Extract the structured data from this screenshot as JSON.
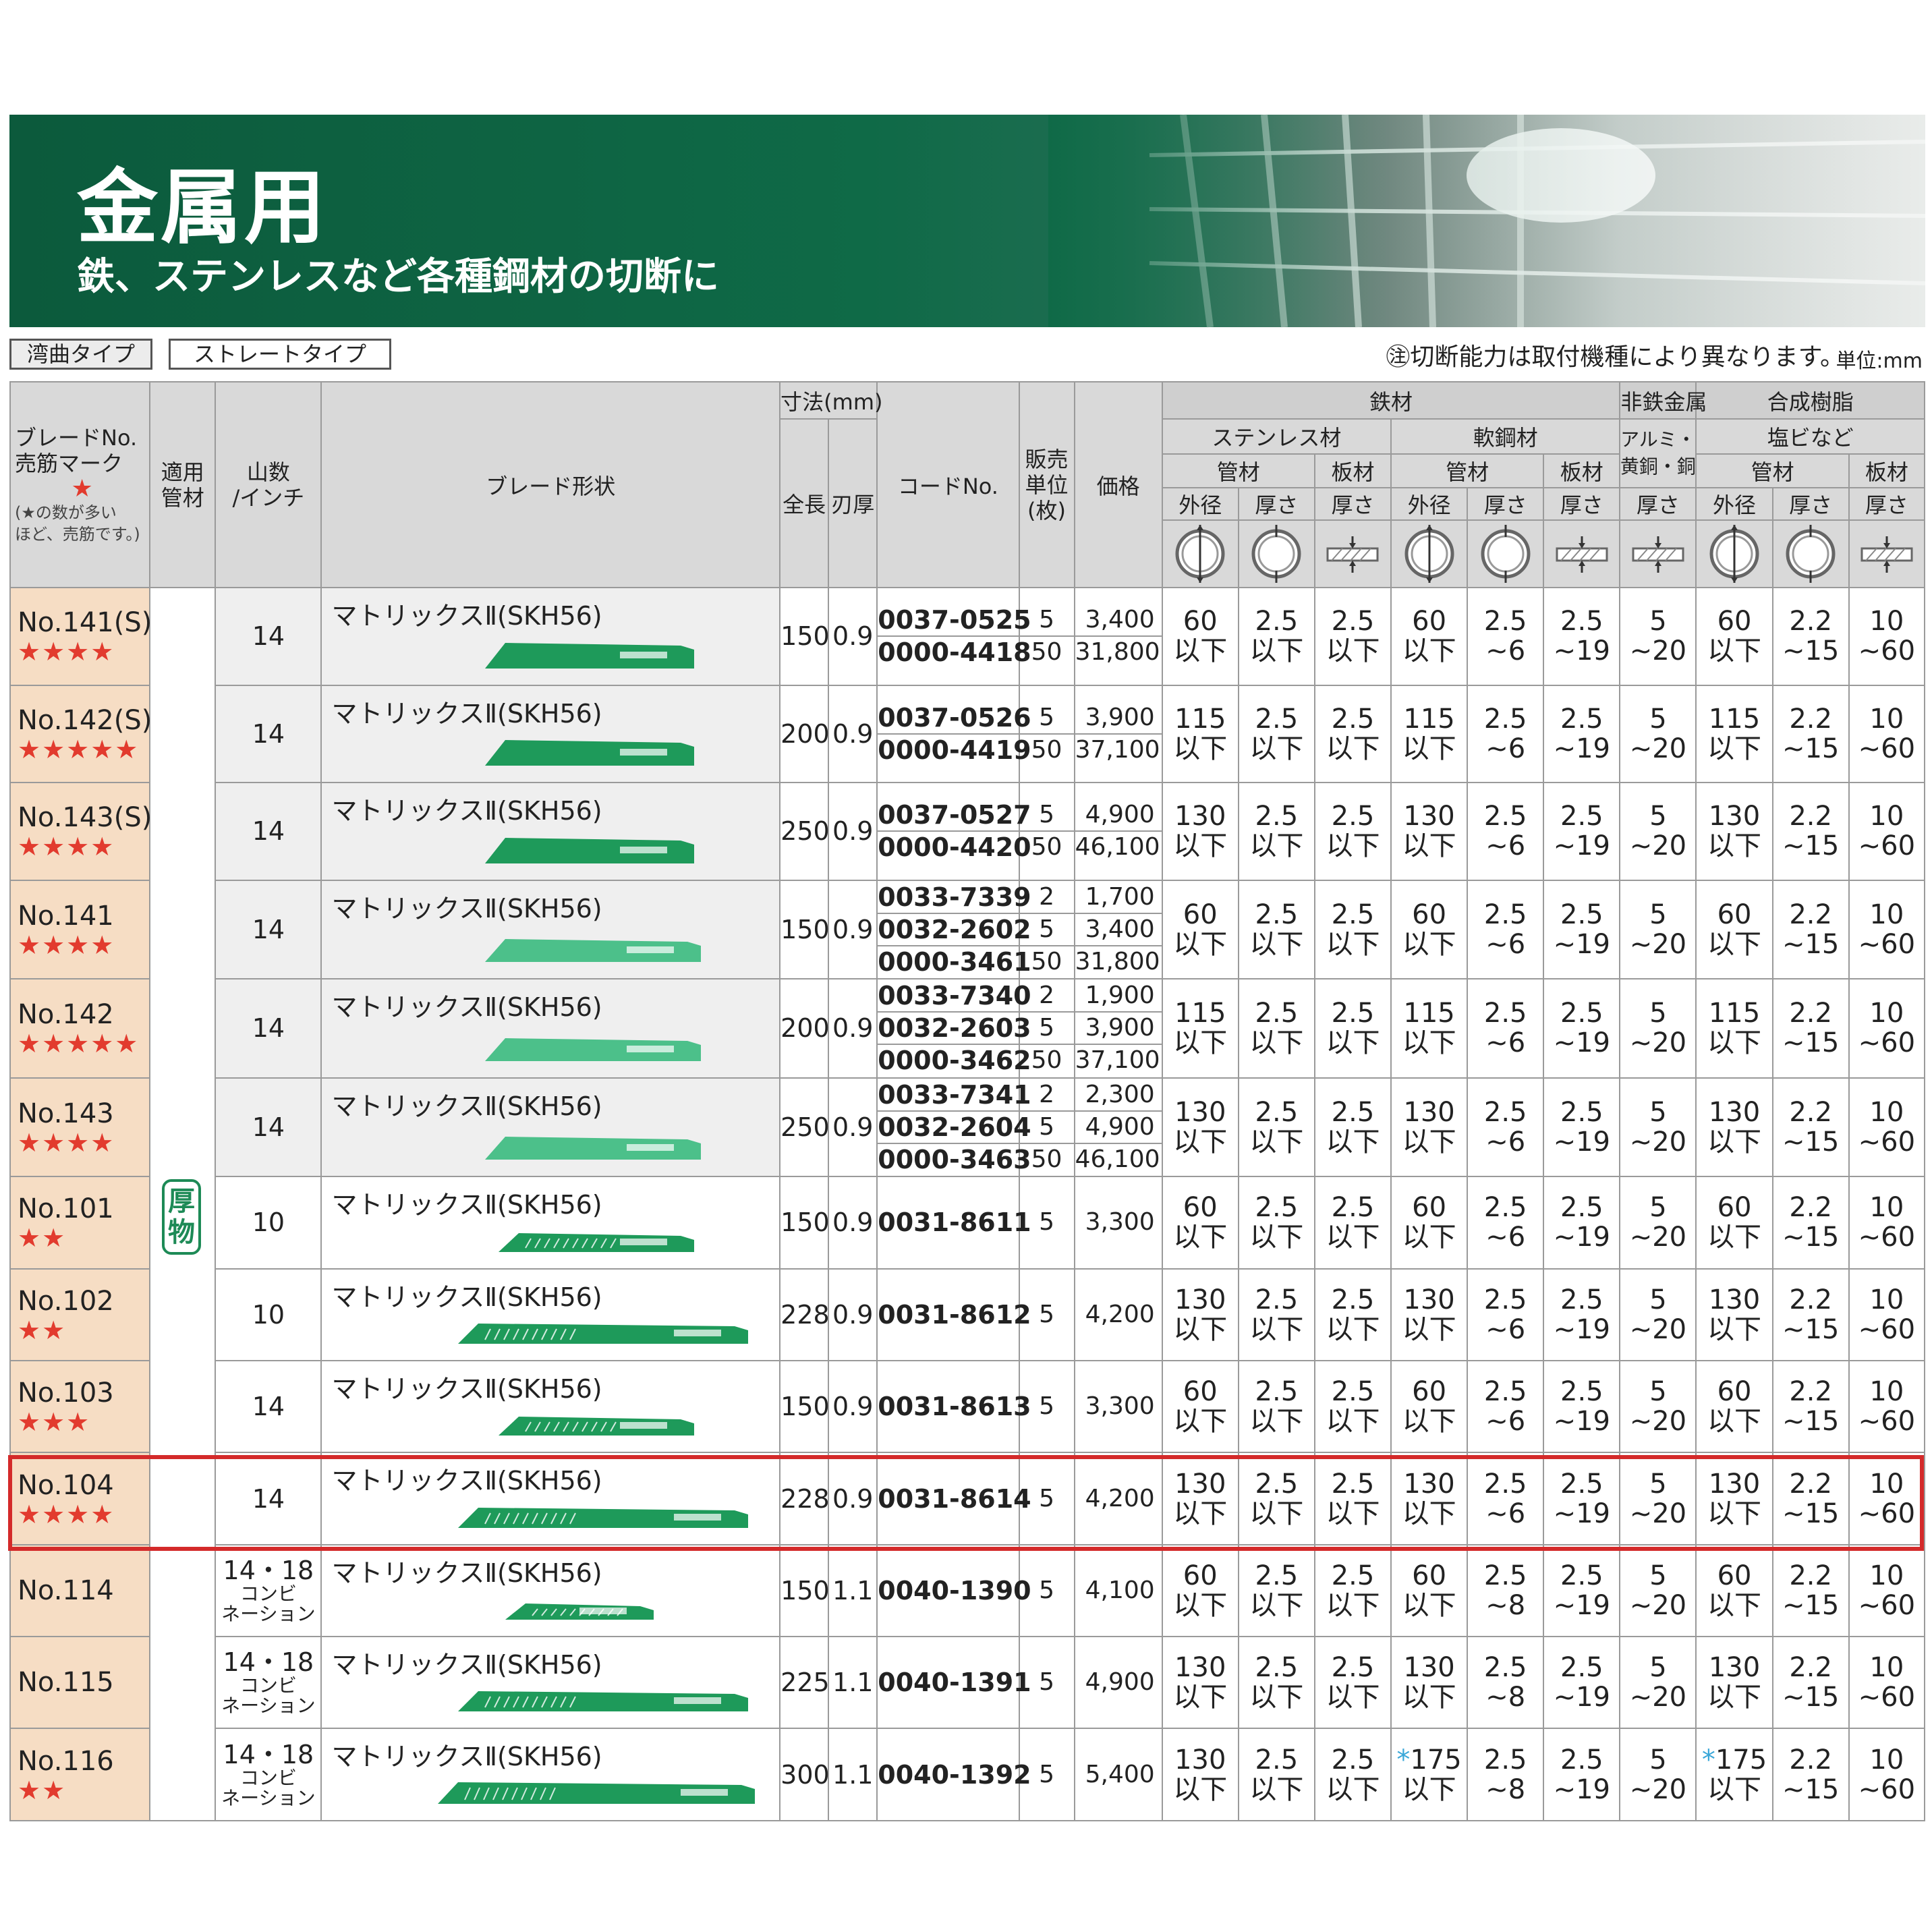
{
  "banner": {
    "title": "金属用",
    "subtitle": "鉄、ステンレスなど各種鋼材の切断に"
  },
  "tabs": {
    "curved": "湾曲タイプ",
    "straight": "ストレートタイプ"
  },
  "note": "㊟切断能力は取付機種により異なります。",
  "unit": "単位:mm",
  "header": {
    "blade_no": "ブレードNo.",
    "popular_mark": "売筋マーク",
    "star": "★",
    "popular_note_1": "(★の数が多い",
    "popular_note_2": "ほど、売筋です。)",
    "material_1": "適用",
    "material_2": "管材",
    "teeth_1": "山数",
    "teeth_2": "/インチ",
    "shape": "ブレード形状",
    "dimension": "寸法(mm)",
    "length": "全長",
    "thickness": "刃厚",
    "code": "コードNo.",
    "unit_1": "販売",
    "unit_2": "単位",
    "unit_3": "(枚)",
    "price": "価格",
    "iron": "鉄材",
    "nonferrous": "非鉄金属",
    "resin": "合成樹脂",
    "stainless": "ステンレス材",
    "mild_steel": "軟鋼材",
    "alu_1": "アルミ・",
    "alu_2": "黄銅・銅",
    "pvc": "塩ビなど",
    "pipe": "管材",
    "plate": "板材",
    "od": "外径",
    "thick": "厚さ"
  },
  "thick_badge": [
    "厚",
    "物"
  ],
  "rows": [
    {
      "no": "No.141(S)",
      "stars": "★★★★",
      "teeth": "14",
      "shape": "マトリックスⅡ(SKH56)",
      "blade": "wide",
      "length": "150",
      "thick": "0.9",
      "codes": [
        "0037-0525",
        "0000-4418"
      ],
      "units": [
        "5",
        "50"
      ],
      "prices": [
        "3,400",
        "31,800"
      ],
      "cap": [
        [
          "60",
          "以下"
        ],
        [
          "2.5",
          "以下"
        ],
        [
          "2.5",
          "以下"
        ],
        [
          "60",
          "以下"
        ],
        [
          "2.5",
          "~6"
        ],
        [
          "2.5",
          "~19"
        ],
        [
          "5",
          "~20"
        ],
        [
          "60",
          "以下"
        ],
        [
          "2.2",
          "~15"
        ],
        [
          "10",
          "~60"
        ]
      ]
    },
    {
      "no": "No.142(S)",
      "stars": "★★★★★",
      "teeth": "14",
      "shape": "マトリックスⅡ(SKH56)",
      "blade": "wide",
      "length": "200",
      "thick": "0.9",
      "codes": [
        "0037-0526",
        "0000-4419"
      ],
      "units": [
        "5",
        "50"
      ],
      "prices": [
        "3,900",
        "37,100"
      ],
      "cap": [
        [
          "115",
          "以下"
        ],
        [
          "2.5",
          "以下"
        ],
        [
          "2.5",
          "以下"
        ],
        [
          "115",
          "以下"
        ],
        [
          "2.5",
          "~6"
        ],
        [
          "2.5",
          "~19"
        ],
        [
          "5",
          "~20"
        ],
        [
          "115",
          "以下"
        ],
        [
          "2.2",
          "~15"
        ],
        [
          "10",
          "~60"
        ]
      ]
    },
    {
      "no": "No.143(S)",
      "stars": "★★★★",
      "teeth": "14",
      "shape": "マトリックスⅡ(SKH56)",
      "blade": "wide",
      "length": "250",
      "thick": "0.9",
      "codes": [
        "0037-0527",
        "0000-4420"
      ],
      "units": [
        "5",
        "50"
      ],
      "prices": [
        "4,900",
        "46,100"
      ],
      "cap": [
        [
          "130",
          "以下"
        ],
        [
          "2.5",
          "以下"
        ],
        [
          "2.5",
          "以下"
        ],
        [
          "130",
          "以下"
        ],
        [
          "2.5",
          "~6"
        ],
        [
          "2.5",
          "~19"
        ],
        [
          "5",
          "~20"
        ],
        [
          "130",
          "以下"
        ],
        [
          "2.2",
          "~15"
        ],
        [
          "10",
          "~60"
        ]
      ]
    },
    {
      "no": "No.141",
      "stars": "★★★★",
      "teeth": "14",
      "shape": "マトリックスⅡ(SKH56)",
      "blade": "light",
      "length": "150",
      "thick": "0.9",
      "codes": [
        "0033-7339",
        "0032-2602",
        "0000-3461"
      ],
      "units": [
        "2",
        "5",
        "50"
      ],
      "prices": [
        "1,700",
        "3,400",
        "31,800"
      ],
      "cap": [
        [
          "60",
          "以下"
        ],
        [
          "2.5",
          "以下"
        ],
        [
          "2.5",
          "以下"
        ],
        [
          "60",
          "以下"
        ],
        [
          "2.5",
          "~6"
        ],
        [
          "2.5",
          "~19"
        ],
        [
          "5",
          "~20"
        ],
        [
          "60",
          "以下"
        ],
        [
          "2.2",
          "~15"
        ],
        [
          "10",
          "~60"
        ]
      ]
    },
    {
      "no": "No.142",
      "stars": "★★★★★",
      "teeth": "14",
      "shape": "マトリックスⅡ(SKH56)",
      "blade": "light",
      "length": "200",
      "thick": "0.9",
      "codes": [
        "0033-7340",
        "0032-2603",
        "0000-3462"
      ],
      "units": [
        "2",
        "5",
        "50"
      ],
      "prices": [
        "1,900",
        "3,900",
        "37,100"
      ],
      "cap": [
        [
          "115",
          "以下"
        ],
        [
          "2.5",
          "以下"
        ],
        [
          "2.5",
          "以下"
        ],
        [
          "115",
          "以下"
        ],
        [
          "2.5",
          "~6"
        ],
        [
          "2.5",
          "~19"
        ],
        [
          "5",
          "~20"
        ],
        [
          "115",
          "以下"
        ],
        [
          "2.2",
          "~15"
        ],
        [
          "10",
          "~60"
        ]
      ]
    },
    {
      "no": "No.143",
      "stars": "★★★★",
      "teeth": "14",
      "shape": "マトリックスⅡ(SKH56)",
      "blade": "light",
      "length": "250",
      "thick": "0.9",
      "codes": [
        "0033-7341",
        "0032-2604",
        "0000-3463"
      ],
      "units": [
        "2",
        "5",
        "50"
      ],
      "prices": [
        "2,300",
        "4,900",
        "46,100"
      ],
      "cap": [
        [
          "130",
          "以下"
        ],
        [
          "2.5",
          "以下"
        ],
        [
          "2.5",
          "以下"
        ],
        [
          "130",
          "以下"
        ],
        [
          "2.5",
          "~6"
        ],
        [
          "2.5",
          "~19"
        ],
        [
          "5",
          "~20"
        ],
        [
          "130",
          "以下"
        ],
        [
          "2.2",
          "~15"
        ],
        [
          "10",
          "~60"
        ]
      ]
    },
    {
      "no": "No.101",
      "stars": "★★",
      "teeth": "10",
      "shape": "マトリックスⅡ(SKH56)",
      "blade": "narrow",
      "length": "150",
      "thick": "0.9",
      "codes": [
        "0031-8611"
      ],
      "units": [
        "5"
      ],
      "prices": [
        "3,300"
      ],
      "cap": [
        [
          "60",
          "以下"
        ],
        [
          "2.5",
          "以下"
        ],
        [
          "2.5",
          "以下"
        ],
        [
          "60",
          "以下"
        ],
        [
          "2.5",
          "~6"
        ],
        [
          "2.5",
          "~19"
        ],
        [
          "5",
          "~20"
        ],
        [
          "60",
          "以下"
        ],
        [
          "2.2",
          "~15"
        ],
        [
          "10",
          "~60"
        ]
      ]
    },
    {
      "no": "No.102",
      "stars": "★★",
      "teeth": "10",
      "shape": "マトリックスⅡ(SKH56)",
      "blade": "narrow-long",
      "length": "228",
      "thick": "0.9",
      "codes": [
        "0031-8612"
      ],
      "units": [
        "5"
      ],
      "prices": [
        "4,200"
      ],
      "cap": [
        [
          "130",
          "以下"
        ],
        [
          "2.5",
          "以下"
        ],
        [
          "2.5",
          "以下"
        ],
        [
          "130",
          "以下"
        ],
        [
          "2.5",
          "~6"
        ],
        [
          "2.5",
          "~19"
        ],
        [
          "5",
          "~20"
        ],
        [
          "130",
          "以下"
        ],
        [
          "2.2",
          "~15"
        ],
        [
          "10",
          "~60"
        ]
      ]
    },
    {
      "no": "No.103",
      "stars": "★★★",
      "teeth": "14",
      "shape": "マトリックスⅡ(SKH56)",
      "blade": "narrow",
      "length": "150",
      "thick": "0.9",
      "codes": [
        "0031-8613"
      ],
      "units": [
        "5"
      ],
      "prices": [
        "3,300"
      ],
      "cap": [
        [
          "60",
          "以下"
        ],
        [
          "2.5",
          "以下"
        ],
        [
          "2.5",
          "以下"
        ],
        [
          "60",
          "以下"
        ],
        [
          "2.5",
          "~6"
        ],
        [
          "2.5",
          "~19"
        ],
        [
          "5",
          "~20"
        ],
        [
          "60",
          "以下"
        ],
        [
          "2.2",
          "~15"
        ],
        [
          "10",
          "~60"
        ]
      ]
    },
    {
      "no": "No.104",
      "stars": "★★★★",
      "teeth": "14",
      "shape": "マトリックスⅡ(SKH56)",
      "blade": "narrow-long",
      "length": "228",
      "thick": "0.9",
      "codes": [
        "0031-8614"
      ],
      "units": [
        "5"
      ],
      "prices": [
        "4,200"
      ],
      "cap": [
        [
          "130",
          "以下"
        ],
        [
          "2.5",
          "以下"
        ],
        [
          "2.5",
          "以下"
        ],
        [
          "130",
          "以下"
        ],
        [
          "2.5",
          "~6"
        ],
        [
          "2.5",
          "~19"
        ],
        [
          "5",
          "~20"
        ],
        [
          "130",
          "以下"
        ],
        [
          "2.2",
          "~15"
        ],
        [
          "10",
          "~60"
        ]
      ]
    },
    {
      "no": "No.114",
      "stars": "",
      "teeth": "14・18",
      "teeth_sub_1": "コンビ",
      "teeth_sub_2": "ネーション",
      "shape": "マトリックスⅡ(SKH56)",
      "blade": "short",
      "length": "150",
      "thick": "1.1",
      "codes": [
        "0040-1390"
      ],
      "units": [
        "5"
      ],
      "prices": [
        "4,100"
      ],
      "cap": [
        [
          "60",
          "以下"
        ],
        [
          "2.5",
          "以下"
        ],
        [
          "2.5",
          "以下"
        ],
        [
          "60",
          "以下"
        ],
        [
          "2.5",
          "~8"
        ],
        [
          "2.5",
          "~19"
        ],
        [
          "5",
          "~20"
        ],
        [
          "60",
          "以下"
        ],
        [
          "2.2",
          "~15"
        ],
        [
          "10",
          "~60"
        ]
      ]
    },
    {
      "no": "No.115",
      "stars": "",
      "teeth": "14・18",
      "teeth_sub_1": "コンビ",
      "teeth_sub_2": "ネーション",
      "shape": "マトリックスⅡ(SKH56)",
      "blade": "narrow-long",
      "length": "225",
      "thick": "1.1",
      "codes": [
        "0040-1391"
      ],
      "units": [
        "5"
      ],
      "prices": [
        "4,900"
      ],
      "cap": [
        [
          "130",
          "以下"
        ],
        [
          "2.5",
          "以下"
        ],
        [
          "2.5",
          "以下"
        ],
        [
          "130",
          "以下"
        ],
        [
          "2.5",
          "~8"
        ],
        [
          "2.5",
          "~19"
        ],
        [
          "5",
          "~20"
        ],
        [
          "130",
          "以下"
        ],
        [
          "2.2",
          "~15"
        ],
        [
          "10",
          "~60"
        ]
      ]
    },
    {
      "no": "No.116",
      "stars": "★★",
      "teeth": "14・18",
      "teeth_sub_1": "コンビ",
      "teeth_sub_2": "ネーション",
      "shape": "マトリックスⅡ(SKH56)",
      "blade": "long",
      "length": "300",
      "thick": "1.1",
      "codes": [
        "0040-1392"
      ],
      "units": [
        "5"
      ],
      "prices": [
        "5,400"
      ],
      "cap": [
        [
          "130",
          "以下"
        ],
        [
          "2.5",
          "以下"
        ],
        [
          "2.5",
          "以下"
        ],
        [
          "*175",
          "以下"
        ],
        [
          "2.5",
          "~8"
        ],
        [
          "2.5",
          "~19"
        ],
        [
          "5",
          "~20"
        ],
        [
          "*175",
          "以下"
        ],
        [
          "2.2",
          "~15"
        ],
        [
          "10",
          "~60"
        ]
      ]
    }
  ],
  "colors": {
    "banner_green": "#0f6a47",
    "blade_green": "#1e9a5a",
    "blade_light": "#4cc08a",
    "star_red": "#e23b2e",
    "no_cell": "#f6ddc4",
    "highlight": "#d42a2a",
    "asterisk_blue": "#3aa7d8"
  }
}
